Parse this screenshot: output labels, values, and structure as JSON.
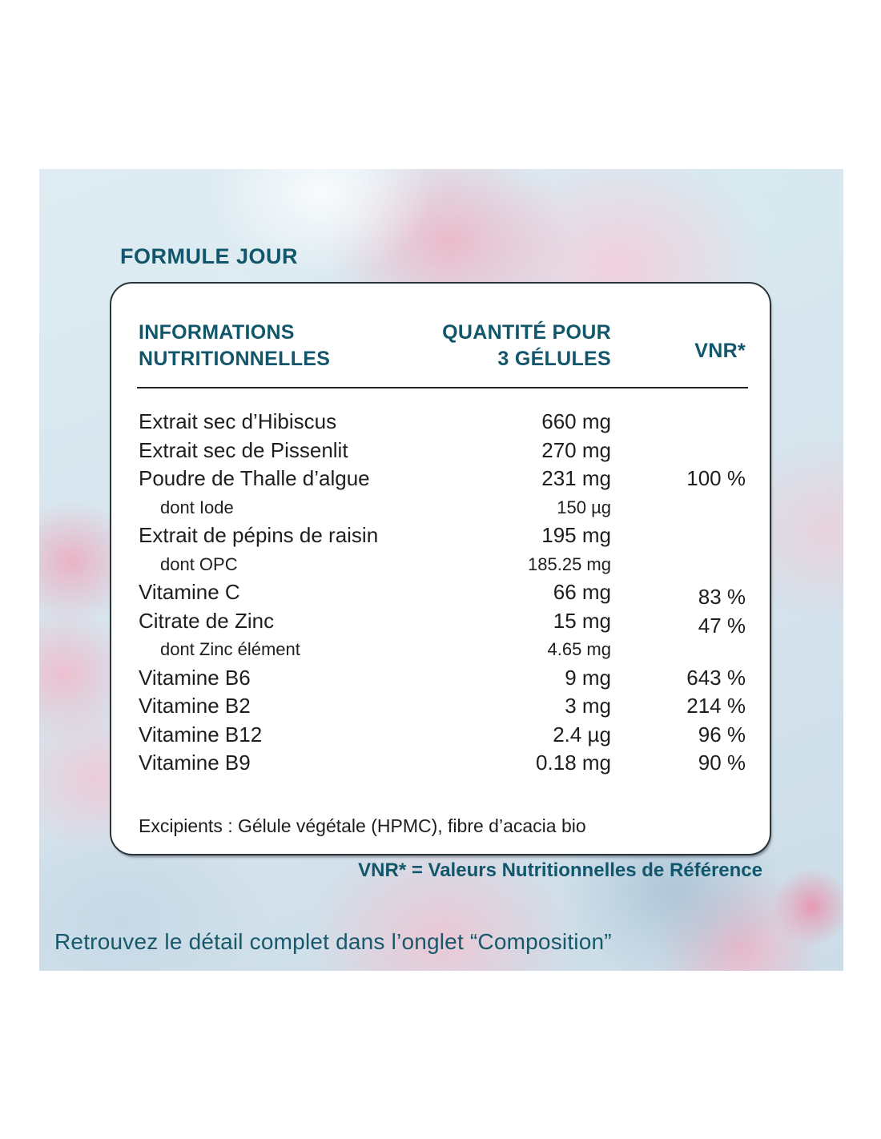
{
  "title": "FORMULE JOUR",
  "table": {
    "headers": {
      "info_line1": "INFORMATIONS",
      "info_line2": "NUTRITIONNELLES",
      "qty_line1": "QUANTITÉ POUR",
      "qty_line2": "3 GÉLULES",
      "vnr": "VNR*"
    },
    "rows": [
      {
        "name": "Extrait sec d’Hibiscus",
        "qty": "660 mg",
        "vnr": "",
        "sub": false,
        "vnr_low": false
      },
      {
        "name": "Extrait sec de Pissenlit",
        "qty": "270 mg",
        "vnr": "",
        "sub": false,
        "vnr_low": false
      },
      {
        "name": "Poudre de Thalle d’algue",
        "qty": "231 mg",
        "vnr": "100 %",
        "sub": false,
        "vnr_low": false
      },
      {
        "name": "dont Iode",
        "qty": "150 µg",
        "vnr": "",
        "sub": true,
        "vnr_low": false
      },
      {
        "name": "Extrait de pépins de raisin",
        "qty": "195 mg",
        "vnr": "",
        "sub": false,
        "vnr_low": false
      },
      {
        "name": "dont OPC",
        "qty": "185.25 mg",
        "vnr": "",
        "sub": true,
        "vnr_low": false
      },
      {
        "name": "Vitamine C",
        "qty": "66 mg",
        "vnr": "83 %",
        "sub": false,
        "vnr_low": true
      },
      {
        "name": "Citrate de Zinc",
        "qty": "15 mg",
        "vnr": "47 %",
        "sub": false,
        "vnr_low": true
      },
      {
        "name": "dont Zinc élément",
        "qty": "4.65 mg",
        "vnr": "",
        "sub": true,
        "vnr_low": false
      },
      {
        "name": "Vitamine B6",
        "qty": "9 mg",
        "vnr": "643 %",
        "sub": false,
        "vnr_low": false
      },
      {
        "name": "Vitamine B2",
        "qty": "3 mg",
        "vnr": "214 %",
        "sub": false,
        "vnr_low": false
      },
      {
        "name": "Vitamine B12",
        "qty": "2.4 µg",
        "vnr": "96 %",
        "sub": false,
        "vnr_low": false
      },
      {
        "name": "Vitamine B9",
        "qty": "0.18 mg",
        "vnr": "90 %",
        "sub": false,
        "vnr_low": false
      }
    ],
    "excipients": "Excipients : Gélule végétale (HPMC), fibre d’acacia bio"
  },
  "footnote": "VNR* = Valeurs Nutritionnelles de Référence",
  "caption": "Retrouvez le détail complet dans l’onglet “Composition”",
  "colors": {
    "teal_accent": "#12566b",
    "body_text": "#1e1e20",
    "card_background": "#ffffff"
  }
}
